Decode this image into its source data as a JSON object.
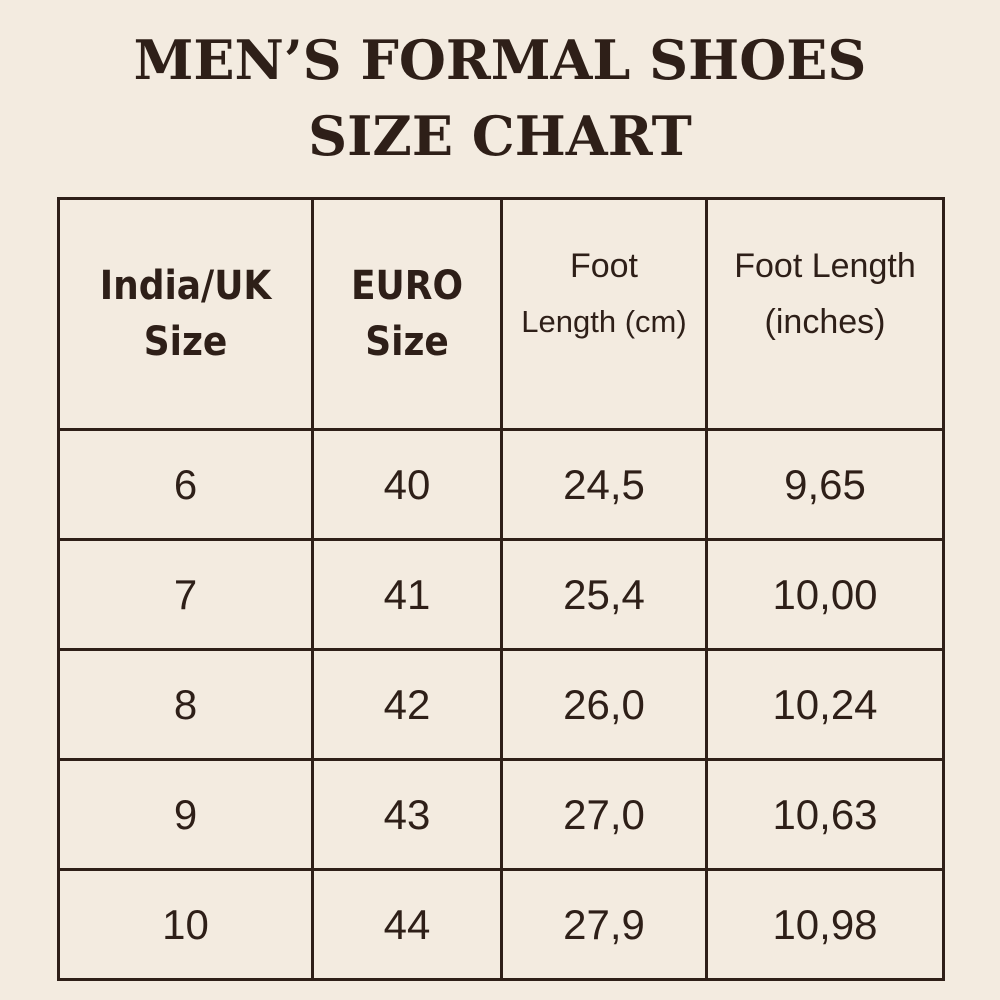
{
  "title": {
    "line1": "MEN’S FORMAL SHOES",
    "line2": "SIZE CHART"
  },
  "colors": {
    "background": "#f3ebe0",
    "ink": "#2e1f18"
  },
  "table": {
    "headers": [
      {
        "line1": "India/UK",
        "line2": "Size"
      },
      {
        "line1": "EURO",
        "line2": "Size"
      },
      {
        "line1": "Foot",
        "line2": "Length (cm)"
      },
      {
        "line1": "Foot Length",
        "line2": "(inches)"
      }
    ],
    "rows": [
      [
        "6",
        "40",
        "24,5",
        "9,65"
      ],
      [
        "7",
        "41",
        "25,4",
        "10,00"
      ],
      [
        "8",
        "42",
        "26,0",
        "10,24"
      ],
      [
        "9",
        "43",
        "27,0",
        "10,63"
      ],
      [
        "10",
        "44",
        "27,9",
        "10,98"
      ]
    ]
  }
}
